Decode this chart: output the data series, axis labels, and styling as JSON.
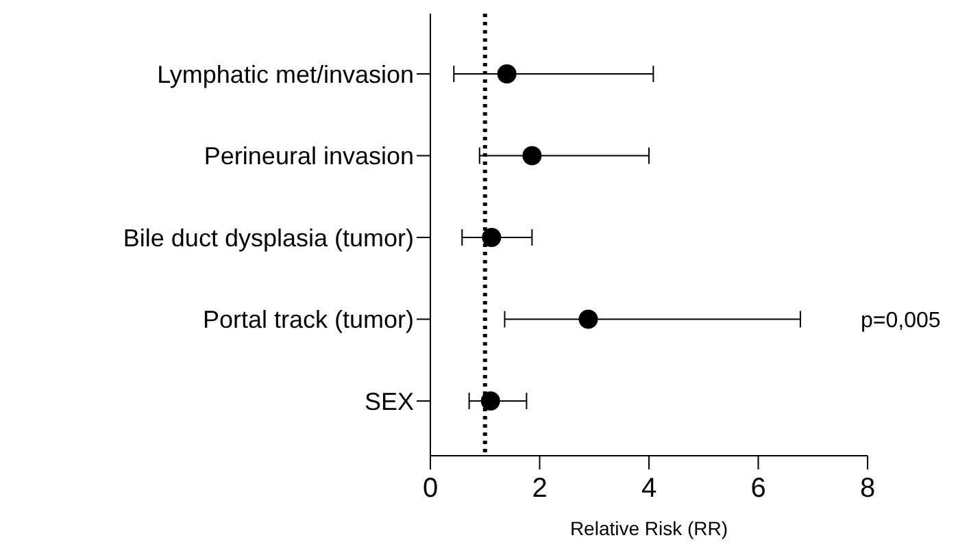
{
  "chart_data": {
    "type": "scatter",
    "orientation": "horizontal",
    "xlabel": "Relative Risk (RR)",
    "categories": [
      "Lymphatic met/invasion",
      "Perineural invasion",
      "Bile duct dysplasia (tumor)",
      "Portal track (tumor)",
      "SEX"
    ],
    "series": [
      {
        "color": "#000000",
        "values": [
          1.4,
          1.86,
          1.12,
          2.89,
          1.1
        ],
        "errors": [
          [
            0.43,
            4.08
          ],
          [
            0.9,
            4.0
          ],
          [
            0.58,
            1.86
          ],
          [
            1.36,
            6.77
          ],
          [
            0.71,
            1.76
          ]
        ]
      }
    ],
    "xlim": [
      0,
      8
    ],
    "xticks": [
      0,
      2,
      4,
      6,
      8
    ],
    "marker": "circle",
    "grid": false,
    "ref_lines": [
      {
        "axis": "x",
        "value": 1,
        "color": "#000000",
        "line_style": "dotted"
      }
    ],
    "annotations": [
      "p=0,005"
    ]
  }
}
